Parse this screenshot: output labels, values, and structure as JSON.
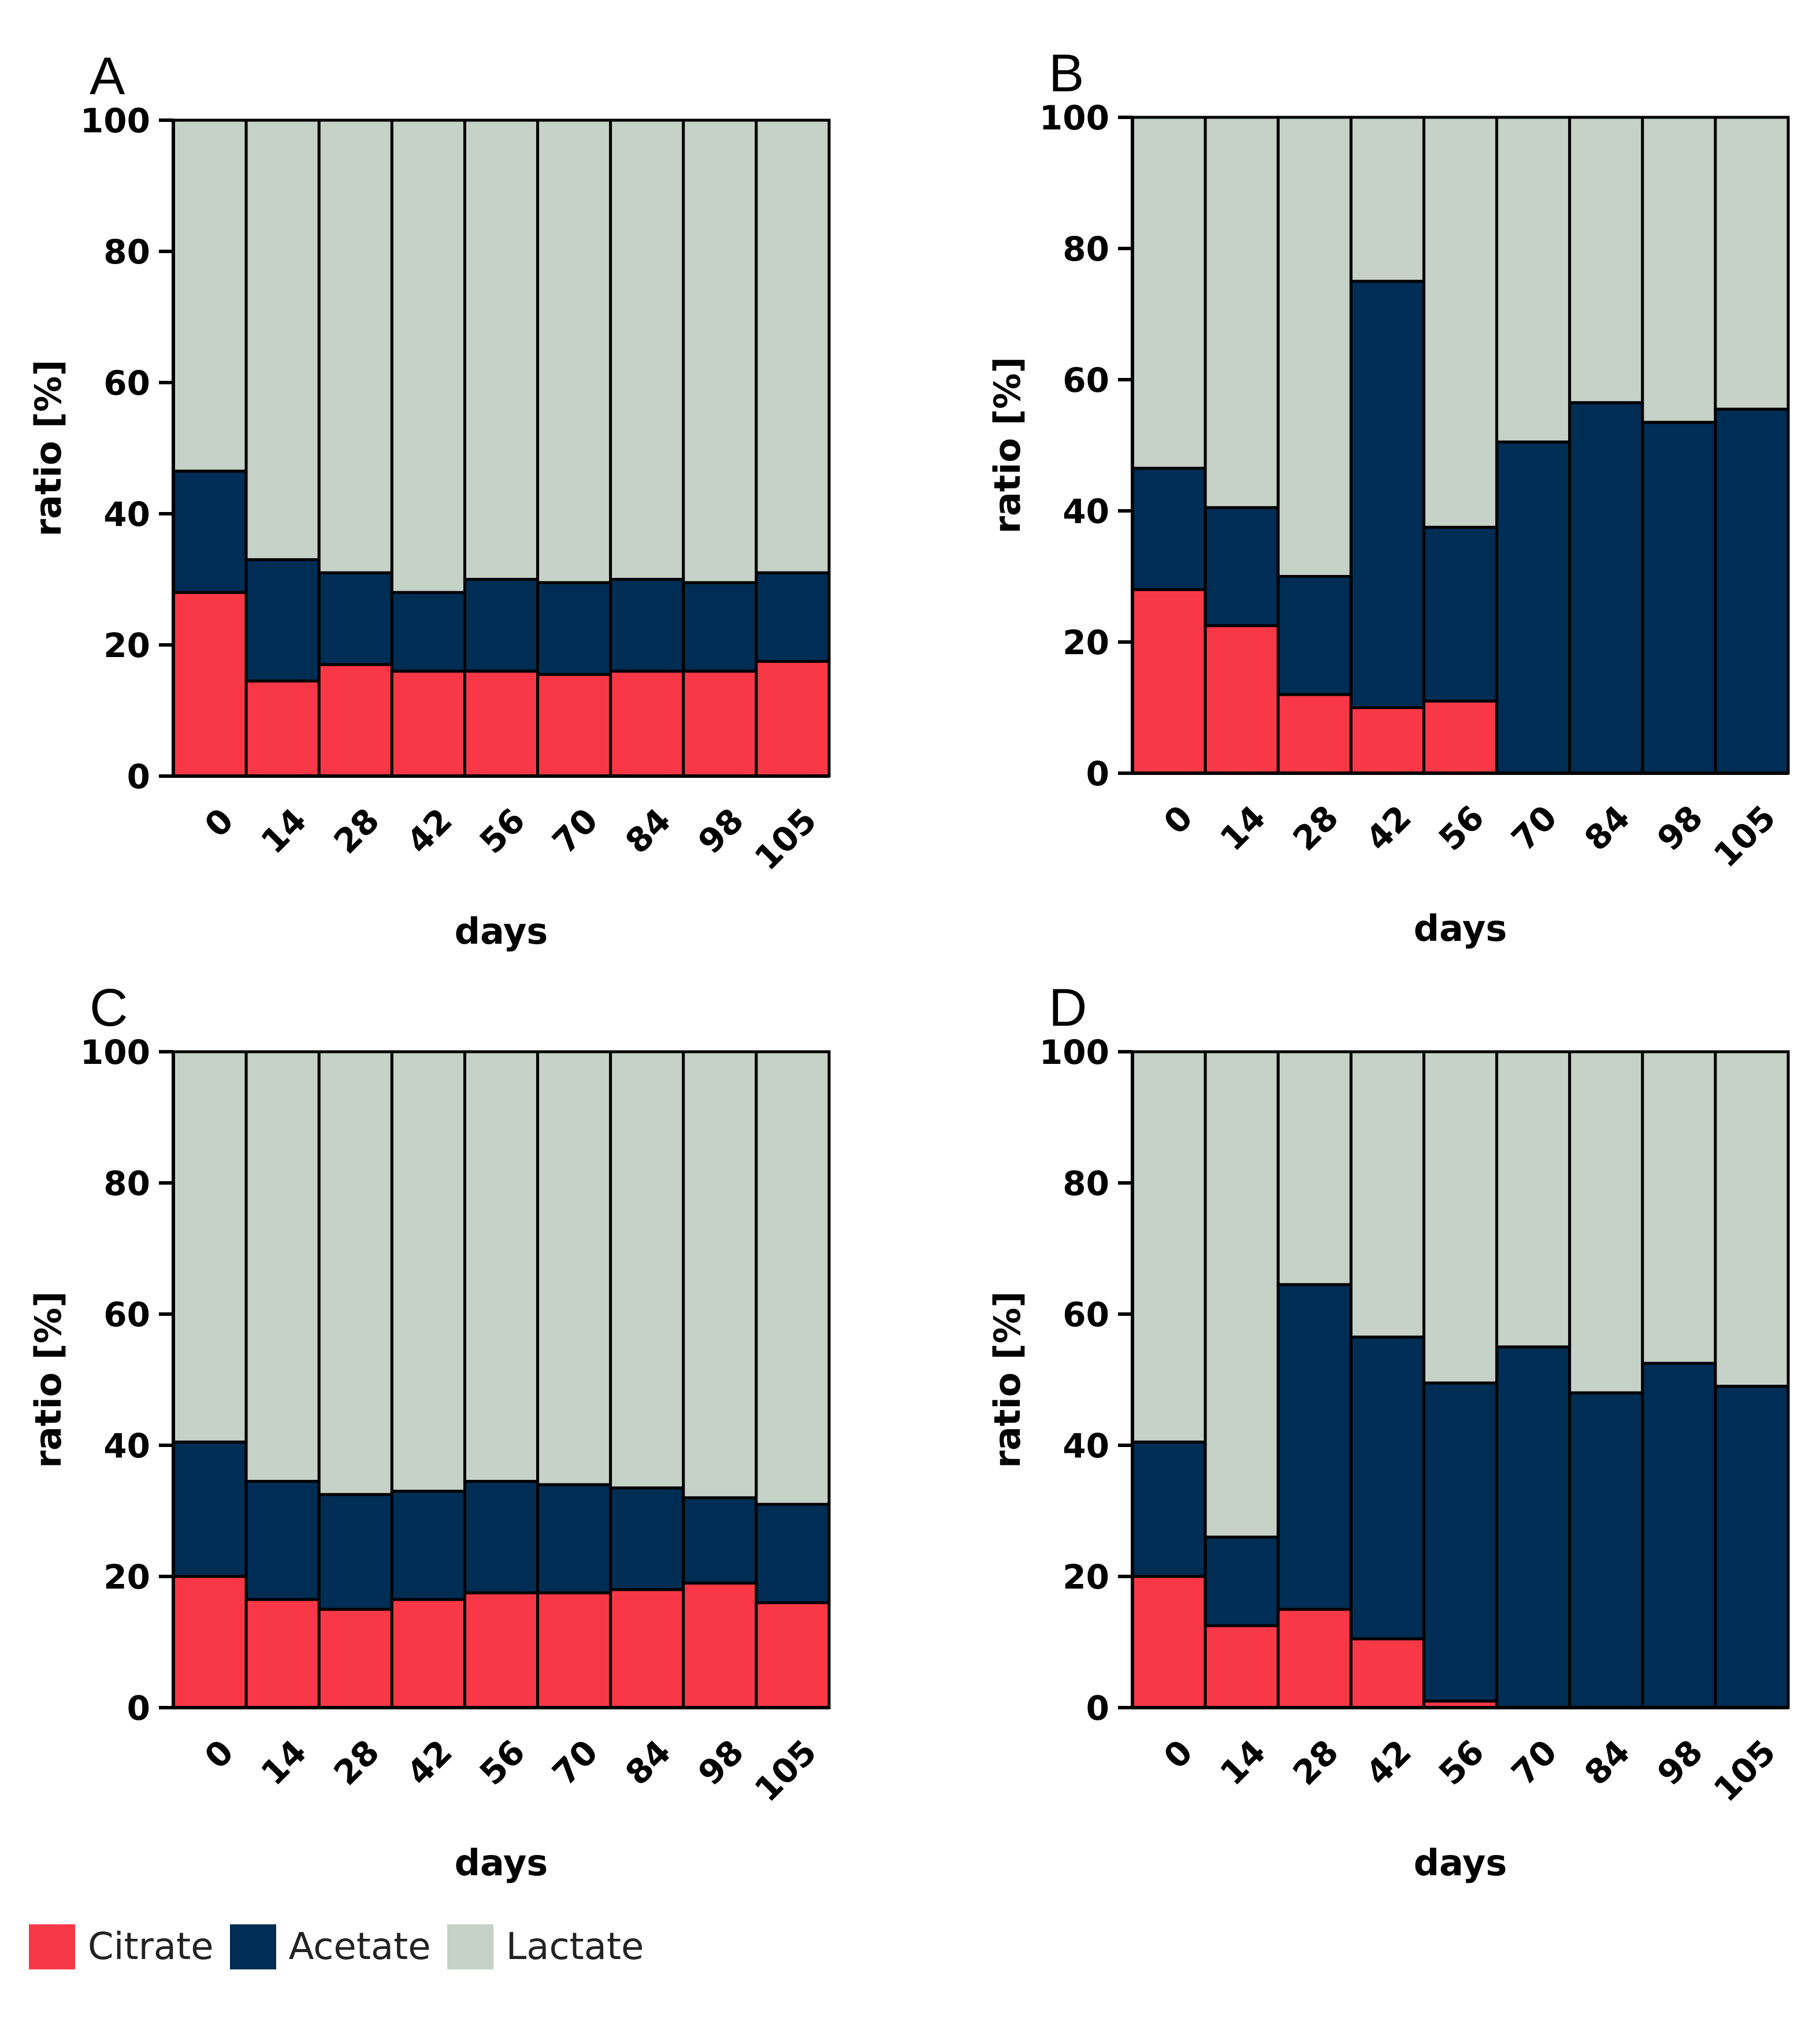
{
  "colors": {
    "citrate": "#f93847",
    "acetate": "#002d54",
    "lactate": "#c6d1c8",
    "axis": "#000000"
  },
  "legend": [
    {
      "key": "citrate",
      "label": "Citrate"
    },
    {
      "key": "acetate",
      "label": "Acetate"
    },
    {
      "key": "lactate",
      "label": "Lactate"
    }
  ],
  "chart_data": [
    {
      "panel": "A",
      "type": "bar",
      "stacked": true,
      "xlabel": "days",
      "ylabel": "ratio [%]",
      "ylim": [
        0,
        100
      ],
      "yticks": [
        "0",
        "20",
        "40",
        "60",
        "80",
        "100"
      ],
      "categories": [
        "0",
        "14",
        "28",
        "42",
        "56",
        "70",
        "84",
        "98",
        "105"
      ],
      "series": [
        {
          "name": "Citrate",
          "values": [
            28,
            14.5,
            17,
            16,
            16,
            15.5,
            16,
            16,
            17.5
          ]
        },
        {
          "name": "Acetate",
          "values": [
            18.5,
            18.5,
            14,
            12,
            14,
            14,
            14,
            13.5,
            13.5
          ]
        },
        {
          "name": "Lactate",
          "values": [
            53.5,
            67,
            69,
            72,
            70,
            70.5,
            70,
            70.5,
            69
          ]
        }
      ]
    },
    {
      "panel": "B",
      "type": "bar",
      "stacked": true,
      "xlabel": "days",
      "ylabel": "ratio [%]",
      "ylim": [
        0,
        100
      ],
      "yticks": [
        "0",
        "20",
        "40",
        "60",
        "80",
        "100"
      ],
      "categories": [
        "0",
        "14",
        "28",
        "42",
        "56",
        "70",
        "84",
        "98",
        "105"
      ],
      "series": [
        {
          "name": "Citrate",
          "values": [
            28,
            22.5,
            12,
            10,
            11,
            0,
            0,
            0,
            0
          ]
        },
        {
          "name": "Acetate",
          "values": [
            18.5,
            18,
            18,
            65,
            26.5,
            50.5,
            56.5,
            53.5,
            55.5
          ]
        },
        {
          "name": "Lactate",
          "values": [
            53.5,
            59.5,
            70,
            25,
            62.5,
            49.5,
            43.5,
            46.5,
            44.5
          ]
        }
      ]
    },
    {
      "panel": "C",
      "type": "bar",
      "stacked": true,
      "xlabel": "days",
      "ylabel": "ratio [%]",
      "ylim": [
        0,
        100
      ],
      "yticks": [
        "0",
        "20",
        "40",
        "60",
        "80",
        "100"
      ],
      "categories": [
        "0",
        "14",
        "28",
        "42",
        "56",
        "70",
        "84",
        "98",
        "105"
      ],
      "series": [
        {
          "name": "Citrate",
          "values": [
            20,
            16.5,
            15,
            16.5,
            17.5,
            17.5,
            18,
            19,
            16
          ]
        },
        {
          "name": "Acetate",
          "values": [
            20.5,
            18,
            17.5,
            16.5,
            17,
            16.5,
            15.5,
            13,
            15
          ]
        },
        {
          "name": "Lactate",
          "values": [
            59.5,
            65.5,
            67.5,
            67,
            65.5,
            66,
            66.5,
            68,
            69
          ]
        }
      ]
    },
    {
      "panel": "D",
      "type": "bar",
      "stacked": true,
      "xlabel": "days",
      "ylabel": "ratio [%]",
      "ylim": [
        0,
        100
      ],
      "yticks": [
        "0",
        "20",
        "40",
        "60",
        "80",
        "100"
      ],
      "categories": [
        "0",
        "14",
        "28",
        "42",
        "56",
        "70",
        "84",
        "98",
        "105"
      ],
      "series": [
        {
          "name": "Citrate",
          "values": [
            20,
            12.5,
            15,
            10.5,
            1,
            0,
            0,
            0,
            0
          ]
        },
        {
          "name": "Acetate",
          "values": [
            20.5,
            13.5,
            49.5,
            46,
            48.5,
            55,
            48,
            52.5,
            49
          ]
        },
        {
          "name": "Lactate",
          "values": [
            59.5,
            74,
            35.5,
            43.5,
            50.5,
            45,
            52,
            47.5,
            51
          ]
        }
      ]
    }
  ]
}
